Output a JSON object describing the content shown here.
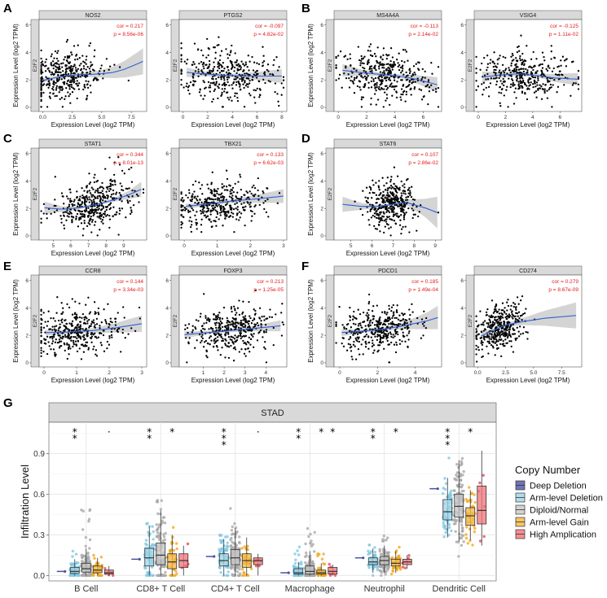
{
  "chart_data": [
    {
      "panel": "A",
      "type": "scatter",
      "title": "NOS2",
      "xlabel": "Expression Level (log2 TPM)",
      "ylabel": "Expression Level (log2 TPM)",
      "yvar": "E2F2",
      "xlim": [
        -0.3,
        8.8
      ],
      "xticks": [
        0,
        2.5,
        5,
        7.5
      ],
      "xtick_labels": [
        "0.0",
        "2.5",
        "5.0",
        "7.5"
      ],
      "ylim": [
        -0.3,
        6.4
      ],
      "yticks": [
        0,
        2,
        4,
        6
      ],
      "cor": "cor = 0.217",
      "p": "p = 8.56e-06",
      "fit": [
        [
          0,
          1.95
        ],
        [
          1,
          2.15
        ],
        [
          2,
          2.3
        ],
        [
          3,
          2.38
        ],
        [
          4,
          2.4
        ],
        [
          5,
          2.45
        ],
        [
          6,
          2.55
        ],
        [
          7,
          2.8
        ],
        [
          8.5,
          3.35
        ]
      ],
      "ci": [
        0.15,
        0.15,
        0.12,
        0.14,
        0.2,
        0.28,
        0.42,
        0.62,
        0.95
      ],
      "xcenter": 1.8,
      "xspread": 1.7,
      "ycenter": 2.3,
      "yspread": 1.1,
      "n": 380
    },
    {
      "panel": "",
      "type": "scatter",
      "title": "PTGS2",
      "xlabel": "Expression Level (log2 TPM)",
      "ylabel": "",
      "yvar": "E2F2",
      "xlim": [
        -0.3,
        8.4
      ],
      "xticks": [
        0,
        2,
        4,
        6,
        8
      ],
      "xtick_labels": [
        "0",
        "2",
        "4",
        "6",
        "8"
      ],
      "ylim": [
        -0.3,
        6.4
      ],
      "yticks": [
        0,
        2,
        4,
        6
      ],
      "cor": "cor = -0.097",
      "p": "p = 4.82e-02",
      "fit": [
        [
          0.3,
          2.55
        ],
        [
          1.5,
          2.45
        ],
        [
          3,
          2.35
        ],
        [
          4.5,
          2.3
        ],
        [
          6,
          2.28
        ],
        [
          8,
          2.28
        ]
      ],
      "ci": [
        0.35,
        0.2,
        0.12,
        0.15,
        0.3,
        0.5
      ],
      "xcenter": 3.5,
      "xspread": 2.0,
      "ycenter": 2.3,
      "yspread": 1.0,
      "n": 380
    },
    {
      "panel": "B",
      "type": "scatter",
      "title": "MS4A4A",
      "xlabel": "Expression Level (log2 TPM)",
      "ylabel": "Expression Level (log2 TPM)",
      "yvar": "E2F2",
      "xlim": [
        -0.3,
        7.3
      ],
      "xticks": [
        0,
        2,
        4,
        6
      ],
      "xtick_labels": [
        "0",
        "2",
        "4",
        "6"
      ],
      "ylim": [
        -0.3,
        6.4
      ],
      "yticks": [
        0,
        2,
        4,
        6
      ],
      "cor": "cor = -0.113",
      "p": "p = 2.14e-02",
      "fit": [
        [
          0.3,
          2.7
        ],
        [
          1.5,
          2.55
        ],
        [
          3,
          2.4
        ],
        [
          4.5,
          2.25
        ],
        [
          5.5,
          2.05
        ],
        [
          7,
          1.65
        ]
      ],
      "ci": [
        0.45,
        0.25,
        0.12,
        0.15,
        0.3,
        0.55
      ],
      "xcenter": 3.3,
      "xspread": 1.6,
      "ycenter": 2.3,
      "yspread": 1.0,
      "n": 380
    },
    {
      "panel": "",
      "type": "scatter",
      "title": "VSIG4",
      "xlabel": "Expression Level (log2 TPM)",
      "ylabel": "",
      "yvar": "E2F2",
      "xlim": [
        -0.3,
        7.6
      ],
      "xticks": [
        0,
        2,
        4,
        6
      ],
      "xtick_labels": [
        "0",
        "2",
        "4",
        "6"
      ],
      "ylim": [
        -0.3,
        6.4
      ],
      "yticks": [
        0,
        2,
        4,
        6
      ],
      "cor": "cor = -0.125",
      "p": "p = 1.11e-02",
      "fit": [
        [
          0.3,
          2.2
        ],
        [
          1.5,
          2.35
        ],
        [
          3,
          2.45
        ],
        [
          4.5,
          2.3
        ],
        [
          5.5,
          2.15
        ],
        [
          7.3,
          2.05
        ]
      ],
      "ci": [
        0.4,
        0.22,
        0.12,
        0.15,
        0.28,
        0.45
      ],
      "xcenter": 3.4,
      "xspread": 1.6,
      "ycenter": 2.3,
      "yspread": 1.0,
      "n": 380
    },
    {
      "panel": "C",
      "type": "scatter",
      "title": "STAT1",
      "xlabel": "Expression Level (log2 TPM)",
      "ylabel": "Expression Level (log2 TPM)",
      "yvar": "E2F2",
      "xlim": [
        4.2,
        10.3
      ],
      "xticks": [
        5,
        6,
        7,
        8,
        9
      ],
      "xtick_labels": [
        "5",
        "6",
        "7",
        "8",
        "9"
      ],
      "ylim": [
        -0.3,
        6.4
      ],
      "yticks": [
        0,
        2,
        4,
        6
      ],
      "cor": "cor = 0.344",
      "p": "p = 8.01e-13",
      "fit": [
        [
          4.5,
          2.05
        ],
        [
          5.5,
          1.95
        ],
        [
          6.5,
          2.05
        ],
        [
          7.5,
          2.3
        ],
        [
          8.5,
          2.65
        ],
        [
          9.3,
          3.0
        ],
        [
          10,
          3.4
        ]
      ],
      "ci": [
        0.45,
        0.2,
        0.1,
        0.1,
        0.15,
        0.3,
        0.55
      ],
      "xcenter": 7.3,
      "xspread": 1.1,
      "ycenter": 2.4,
      "yspread": 1.0,
      "n": 400
    },
    {
      "panel": "",
      "type": "scatter",
      "title": "TBX21",
      "xlabel": "Expression Level (log2 TPM)",
      "ylabel": "",
      "yvar": "E2F2",
      "xlim": [
        -0.15,
        3.1
      ],
      "xticks": [
        0,
        1,
        2,
        3
      ],
      "xtick_labels": [
        "0",
        "1",
        "2",
        "3"
      ],
      "ylim": [
        -0.3,
        6.4
      ],
      "yticks": [
        0,
        2,
        4,
        6
      ],
      "cor": "cor = 0.133",
      "p": "p = 6.62e-03",
      "fit": [
        [
          0.05,
          2.15
        ],
        [
          0.8,
          2.35
        ],
        [
          1.5,
          2.55
        ],
        [
          2.2,
          2.7
        ],
        [
          3.0,
          2.9
        ]
      ],
      "ci": [
        0.18,
        0.12,
        0.15,
        0.3,
        0.5
      ],
      "xcenter": 1.0,
      "xspread": 0.65,
      "ycenter": 2.3,
      "yspread": 1.0,
      "n": 380
    },
    {
      "panel": "D",
      "type": "scatter",
      "title": "STAT6",
      "xlabel": "Expression Level (log2 TPM)",
      "ylabel": "Expression Level (log2 TPM)",
      "yvar": "E2F2",
      "xlim": [
        4.2,
        9.3
      ],
      "xticks": [
        5,
        6,
        7,
        8,
        9
      ],
      "xtick_labels": [
        "5",
        "6",
        "7",
        "8",
        "9"
      ],
      "ylim": [
        -0.3,
        6.4
      ],
      "yticks": [
        0,
        2,
        4,
        6
      ],
      "cor": "cor = 0.107",
      "p": "p = 2.86e-02",
      "fit": [
        [
          4.6,
          2.3
        ],
        [
          5.5,
          2.15
        ],
        [
          6.3,
          2.15
        ],
        [
          7.0,
          2.3
        ],
        [
          7.6,
          2.45
        ],
        [
          8.5,
          2.05
        ],
        [
          9.1,
          1.7
        ]
      ],
      "ci": [
        0.55,
        0.25,
        0.1,
        0.12,
        0.2,
        0.65,
        1.15
      ],
      "xcenter": 6.9,
      "xspread": 0.6,
      "ycenter": 2.3,
      "yspread": 1.0,
      "n": 380
    },
    {
      "panel": "E",
      "type": "scatter",
      "title": "CCR8",
      "xlabel": "Expression Level (log2 TPM)",
      "ylabel": "Expression Level (log2 TPM)",
      "yvar": "E2F2",
      "xlim": [
        -0.15,
        3.15
      ],
      "xticks": [
        0,
        1,
        2,
        3
      ],
      "xtick_labels": [
        "0",
        "1",
        "2",
        "3"
      ],
      "ylim": [
        -0.3,
        6.4
      ],
      "yticks": [
        0,
        2,
        4,
        6
      ],
      "cor": "cor = 0.144",
      "p": "p = 3.34e-03",
      "fit": [
        [
          0.05,
          2.2
        ],
        [
          0.8,
          2.25
        ],
        [
          1.5,
          2.35
        ],
        [
          2.2,
          2.55
        ],
        [
          3.0,
          2.85
        ]
      ],
      "ci": [
        0.2,
        0.12,
        0.18,
        0.35,
        0.6
      ],
      "xcenter": 1.0,
      "xspread": 0.7,
      "ycenter": 2.3,
      "yspread": 1.0,
      "n": 380
    },
    {
      "panel": "",
      "type": "scatter",
      "title": "FOXP3",
      "xlabel": "Expression Level (log2 TPM)",
      "ylabel": "",
      "yvar": "E2F2",
      "xlim": [
        -0.15,
        5.0
      ],
      "xticks": [
        1,
        2,
        3,
        4
      ],
      "xtick_labels": [
        "1",
        "2",
        "3",
        "4"
      ],
      "ylim": [
        -0.3,
        6.4
      ],
      "yticks": [
        0,
        2,
        4,
        6
      ],
      "cor": "cor = 0.213",
      "p": "p = 1.25e-05",
      "fit": [
        [
          0.1,
          2.05
        ],
        [
          1.2,
          2.2
        ],
        [
          2.3,
          2.35
        ],
        [
          3.4,
          2.5
        ],
        [
          4.7,
          2.7
        ]
      ],
      "ci": [
        0.25,
        0.12,
        0.12,
        0.2,
        0.4
      ],
      "xcenter": 2.3,
      "xspread": 1.0,
      "ycenter": 2.3,
      "yspread": 1.0,
      "n": 380
    },
    {
      "panel": "F",
      "type": "scatter",
      "title": "PDCD1",
      "xlabel": "Expression Level (log2 TPM)",
      "ylabel": "Expression Level (log2 TPM)",
      "yvar": "E2F2",
      "xlim": [
        -0.3,
        5.4
      ],
      "xticks": [
        0,
        2,
        4
      ],
      "xtick_labels": [
        "0",
        "2",
        "4"
      ],
      "ylim": [
        -0.3,
        6.4
      ],
      "yticks": [
        0,
        2,
        4,
        6
      ],
      "cor": "cor = 0.185",
      "p": "p = 1.49e-04",
      "fit": [
        [
          0.1,
          2.2
        ],
        [
          1.2,
          2.3
        ],
        [
          2.3,
          2.45
        ],
        [
          3.4,
          2.7
        ],
        [
          4.6,
          3.05
        ],
        [
          5.2,
          3.3
        ]
      ],
      "ci": [
        0.25,
        0.12,
        0.12,
        0.25,
        0.6,
        0.85
      ],
      "xcenter": 2.0,
      "xspread": 1.0,
      "ycenter": 2.3,
      "yspread": 1.0,
      "n": 380
    },
    {
      "panel": "",
      "type": "scatter",
      "title": "CD274",
      "xlabel": "Expression Level (log2 TPM)",
      "ylabel": "",
      "yvar": "E2F2",
      "xlim": [
        -0.3,
        9.3
      ],
      "xticks": [
        0,
        2.5,
        5,
        7.5
      ],
      "xtick_labels": [
        "0.0",
        "2.5",
        "5.0",
        "7.5"
      ],
      "ylim": [
        -0.3,
        6.4
      ],
      "yticks": [
        0,
        2,
        4,
        6
      ],
      "cor": "cor = 0.279",
      "p": "p = 8.67e-09",
      "fit": [
        [
          0.3,
          1.95
        ],
        [
          1.5,
          2.4
        ],
        [
          2.5,
          2.75
        ],
        [
          4,
          3.0
        ],
        [
          6,
          3.25
        ],
        [
          8.8,
          3.45
        ]
      ],
      "ci": [
        0.3,
        0.12,
        0.12,
        0.25,
        0.55,
        0.95
      ],
      "xcenter": 2.0,
      "xspread": 1.1,
      "ycenter": 2.4,
      "yspread": 1.0,
      "n": 380
    },
    {
      "panel": "G",
      "type": "box",
      "title": "STAD",
      "ylabel": "Infiltration Level",
      "ylim": [
        -0.04,
        1.13
      ],
      "yticks": [
        0.0,
        0.3,
        0.6,
        0.9
      ],
      "ytick_labels": [
        "0.0",
        "0.3",
        "0.6",
        "0.9"
      ],
      "legend_title": "Copy Number",
      "legend_placement": "right",
      "groups": [
        "Deep Deletion",
        "Arm-level Deletion",
        "Diploid/Normal",
        "Arm-level Gain",
        "High Amplication"
      ],
      "group_colors": [
        "#4b52a0",
        "#9fd4e8",
        "#c8c8c8",
        "#f4b63f",
        "#f07278"
      ],
      "point_colors": [
        "#4b52a0",
        "#7ec8e3",
        "#a9a9a9",
        "#f0a81e",
        "#e8485a"
      ],
      "categories": [
        {
          "name": "B Cell",
          "stars": [
            "*",
            "*",
            "",
            "",
            "·"
          ],
          "boxes": [
            [
              0.03,
              0.03,
              0.03,
              0.03,
              0.03
            ],
            [
              0.0,
              0.015,
              0.03,
              0.06,
              0.12
            ],
            [
              0.0,
              0.025,
              0.05,
              0.09,
              0.2
            ],
            [
              0.0,
              0.02,
              0.04,
              0.07,
              0.13
            ],
            [
              0.0,
              0.01,
              0.02,
              0.04,
              0.07
            ]
          ],
          "spread": [
            0,
            0.08,
            0.25,
            0.1,
            0.04
          ]
        },
        {
          "name": "CD8+ T Cell",
          "stars": [
            "*",
            "*",
            "",
            "*",
            ""
          ],
          "boxes": [
            [
              0.12,
              0.12,
              0.12,
              0.12,
              0.12
            ],
            [
              0.0,
              0.07,
              0.13,
              0.2,
              0.36
            ],
            [
              0.0,
              0.08,
              0.15,
              0.24,
              0.48
            ],
            [
              0.0,
              0.05,
              0.1,
              0.16,
              0.3
            ],
            [
              0.0,
              0.06,
              0.11,
              0.16,
              0.22
            ]
          ],
          "spread": [
            0,
            0.12,
            0.2,
            0.12,
            0.06
          ]
        },
        {
          "name": "CD4+ T Cell",
          "stars": [
            "*",
            "*",
            "*",
            "",
            "·"
          ],
          "boxes": [
            [
              0.14,
              0.14,
              0.14,
              0.14,
              0.14
            ],
            [
              0.0,
              0.07,
              0.11,
              0.16,
              0.27
            ],
            [
              0.0,
              0.08,
              0.13,
              0.19,
              0.35
            ],
            [
              0.0,
              0.06,
              0.11,
              0.16,
              0.28
            ],
            [
              0.0,
              0.08,
              0.11,
              0.13,
              0.16
            ]
          ],
          "spread": [
            0,
            0.1,
            0.2,
            0.12,
            0.04
          ]
        },
        {
          "name": "Macrophage",
          "stars": [
            "*",
            "*",
            "",
            "*",
            "*"
          ],
          "boxes": [
            [
              0.02,
              0.02,
              0.02,
              0.02,
              0.02
            ],
            [
              0.0,
              0.01,
              0.02,
              0.05,
              0.1
            ],
            [
              0.0,
              0.01,
              0.03,
              0.07,
              0.18
            ],
            [
              0.0,
              0.01,
              0.02,
              0.04,
              0.09
            ],
            [
              0.0,
              0.01,
              0.03,
              0.06,
              0.08
            ]
          ],
          "spread": [
            0,
            0.1,
            0.2,
            0.08,
            0.03
          ]
        },
        {
          "name": "Neutrophil",
          "stars": [
            "*",
            "*",
            "",
            "*",
            ""
          ],
          "boxes": [
            [
              0.13,
              0.13,
              0.13,
              0.13,
              0.13
            ],
            [
              0.02,
              0.08,
              0.1,
              0.13,
              0.2
            ],
            [
              0.02,
              0.08,
              0.11,
              0.14,
              0.22
            ],
            [
              0.02,
              0.07,
              0.09,
              0.12,
              0.18
            ],
            [
              0.05,
              0.08,
              0.1,
              0.12,
              0.15
            ]
          ],
          "spread": [
            0,
            0.06,
            0.1,
            0.06,
            0.03
          ]
        },
        {
          "name": "Dendritic Cell",
          "stars": [
            "*",
            "*",
            "*",
            "*",
            ""
          ],
          "boxes": [
            [
              0.64,
              0.64,
              0.64,
              0.64,
              0.64
            ],
            [
              0.28,
              0.41,
              0.47,
              0.56,
              0.72
            ],
            [
              0.25,
              0.43,
              0.51,
              0.6,
              0.85
            ],
            [
              0.26,
              0.37,
              0.44,
              0.5,
              0.63
            ],
            [
              0.22,
              0.38,
              0.48,
              0.66,
              0.92
            ]
          ],
          "spread": [
            0,
            0.12,
            0.2,
            0.1,
            0.15
          ]
        }
      ]
    }
  ]
}
